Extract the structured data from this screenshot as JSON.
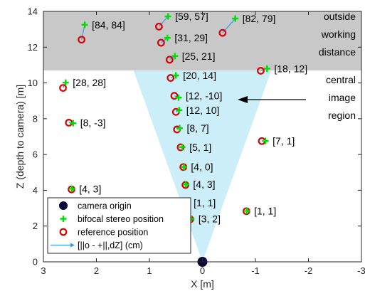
{
  "chart_data": {
    "type": "scatter",
    "title": "",
    "xlabel": "X [m]",
    "ylabel": "Z (depth to camera) [m]",
    "xlim": [
      3,
      -3
    ],
    "ylim": [
      0,
      14
    ],
    "x_ticks": [
      "3",
      "2",
      "1",
      "0",
      "-1",
      "-2",
      "-3"
    ],
    "y_ticks": [
      "0",
      "2",
      "4",
      "6",
      "8",
      "10",
      "12",
      "14"
    ],
    "x_reversed": true,
    "grid": false,
    "legend_placement": "bottom-left",
    "colors": {
      "stereo": "#00dd00",
      "reference": "#dd0000",
      "vector": "#3399ff",
      "origin": "#0a0a3a",
      "fov": "#c6ecf8",
      "outside_band": "#c8c8c8"
    },
    "regions": [
      {
        "type": "band",
        "label_lines": [
          "outside",
          "working",
          "distance"
        ],
        "z_from": 10.7,
        "z_to": 14
      },
      {
        "type": "cone",
        "label_lines": [
          "central",
          "image",
          "region"
        ],
        "apex": [
          0,
          0
        ],
        "top_left_x": 1.3,
        "top_right_x": -1.3,
        "top_z": 10.7
      }
    ],
    "origin": {
      "x": 0,
      "z": 0
    },
    "legend": [
      {
        "key": "origin",
        "label": "camera origin"
      },
      {
        "key": "stereo",
        "label": "bifocal stereo position"
      },
      {
        "key": "reference",
        "label": "reference position"
      },
      {
        "key": "vector",
        "label": "[||o - +||,dZ] (cm)"
      }
    ],
    "points": [
      {
        "label": "[3, 2]",
        "ref": [
          0.23,
          2.38
        ],
        "stereo": [
          0.21,
          2.4
        ]
      },
      {
        "label": "[1, 1]",
        "ref": [
          0.3,
          3.3
        ],
        "stereo": [
          0.3,
          3.31
        ]
      },
      {
        "label": "[1, 1]",
        "ref": [
          -0.83,
          2.83
        ],
        "stereo": [
          -0.84,
          2.84
        ]
      },
      {
        "label": "[4, 3]",
        "ref": [
          0.32,
          4.3
        ],
        "stereo": [
          0.31,
          4.33
        ]
      },
      {
        "label": "[4, 3]",
        "ref": [
          2.47,
          4.05
        ],
        "stereo": [
          2.46,
          4.08
        ]
      },
      {
        "label": "[4, 0]",
        "ref": [
          0.36,
          5.3
        ],
        "stereo": [
          0.35,
          5.3
        ]
      },
      {
        "label": "[5, 1]",
        "ref": [
          0.41,
          6.4
        ],
        "stereo": [
          0.38,
          6.41
        ]
      },
      {
        "label": "[7, 1]",
        "ref": [
          -1.12,
          6.75
        ],
        "stereo": [
          -1.19,
          6.76
        ]
      },
      {
        "label": "[8, 7]",
        "ref": [
          0.48,
          7.4
        ],
        "stereo": [
          0.43,
          7.47
        ]
      },
      {
        "label": "[8, -3]",
        "ref": [
          2.52,
          7.78
        ],
        "stereo": [
          2.44,
          7.75
        ]
      },
      {
        "label": "[12, 10]",
        "ref": [
          0.5,
          8.38
        ],
        "stereo": [
          0.44,
          8.48
        ]
      },
      {
        "label": "[12, -10]",
        "ref": [
          0.53,
          9.28
        ],
        "stereo": [
          0.45,
          9.18
        ]
      },
      {
        "label": "[28, 28]",
        "ref": [
          2.63,
          9.72
        ],
        "stereo": [
          2.58,
          10.02
        ]
      },
      {
        "label": "[20, 14]",
        "ref": [
          0.6,
          10.28
        ],
        "stereo": [
          0.5,
          10.42
        ]
      },
      {
        "label": "[18, 12]",
        "ref": [
          -1.1,
          10.68
        ],
        "stereo": [
          -1.22,
          10.8
        ]
      },
      {
        "label": "[25, 21]",
        "ref": [
          0.62,
          11.3
        ],
        "stereo": [
          0.52,
          11.5
        ]
      },
      {
        "label": "[31, 29]",
        "ref": [
          0.78,
          12.25
        ],
        "stereo": [
          0.66,
          12.52
        ]
      },
      {
        "label": "[84, 84]",
        "ref": [
          2.28,
          12.42
        ],
        "stereo": [
          2.22,
          13.25
        ]
      },
      {
        "label": "[59, 57]",
        "ref": [
          0.82,
          13.15
        ],
        "stereo": [
          0.65,
          13.72
        ]
      },
      {
        "label": "[82, 79]",
        "ref": [
          -0.38,
          12.8
        ],
        "stereo": [
          -0.62,
          13.6
        ]
      }
    ]
  }
}
